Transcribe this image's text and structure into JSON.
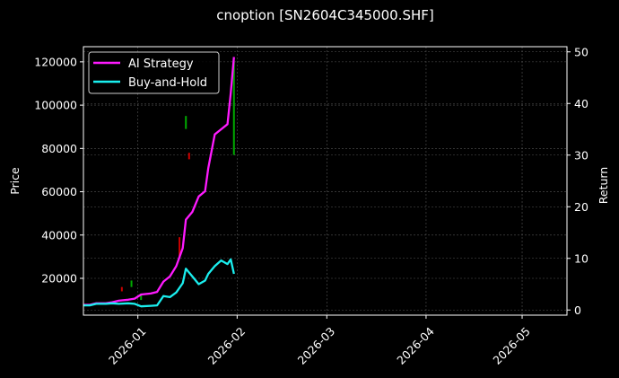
{
  "title": "cnoption [SN2604C345000.SHF]",
  "chart_data": {
    "type": "line",
    "title": "cnoption [SN2604C345000.SHF]",
    "xlabel": "",
    "ylabel": "Price",
    "ylabel_right": "Return",
    "left_ylim": [
      3000,
      127000
    ],
    "right_ylim": [
      -1,
      51
    ],
    "left_ticks": [
      20000,
      40000,
      60000,
      80000,
      100000,
      120000
    ],
    "left_tick_labels": [
      "20000",
      "40000",
      "60000",
      "80000",
      "100000",
      "120000"
    ],
    "right_ticks": [
      0,
      10,
      20,
      30,
      40,
      50
    ],
    "right_tick_labels": [
      "0",
      "10",
      "20",
      "30",
      "40",
      "50"
    ],
    "x_tick_labels": [
      "2026-01",
      "2026-02",
      "2026-03",
      "2026-04",
      "2026-05"
    ],
    "x_range": [
      "2025-12-15",
      "2026-05-15"
    ],
    "grid": true,
    "legend_position": "upper left",
    "legend": [
      "AI Strategy",
      "Buy-and-Hold"
    ],
    "series": [
      {
        "name": "AI Strategy",
        "axis": "right",
        "color": "#ff1aff",
        "x": [
          "2025-12-15",
          "2025-12-17",
          "2025-12-19",
          "2025-12-22",
          "2025-12-24",
          "2025-12-26",
          "2025-12-29",
          "2025-12-31",
          "2026-01-02",
          "2026-01-05",
          "2026-01-07",
          "2026-01-09",
          "2026-01-11",
          "2026-01-13",
          "2026-01-15",
          "2026-01-16",
          "2026-01-18",
          "2026-01-20",
          "2026-01-22",
          "2026-01-23",
          "2026-01-25",
          "2026-01-27",
          "2026-01-29",
          "2026-01-30",
          "2026-01-31"
        ],
        "values": [
          1.0,
          1.0,
          1.3,
          1.3,
          1.5,
          1.8,
          2.0,
          2.2,
          3.0,
          3.2,
          3.5,
          5.5,
          6.5,
          8.5,
          12.0,
          17.5,
          19.0,
          22.0,
          23.0,
          27.5,
          34.0,
          35.0,
          36.0,
          42.0,
          49.0
        ]
      },
      {
        "name": "Buy-and-Hold",
        "axis": "right",
        "color": "#1aeeee",
        "x": [
          "2025-12-15",
          "2025-12-17",
          "2025-12-19",
          "2025-12-22",
          "2025-12-24",
          "2025-12-26",
          "2025-12-29",
          "2025-12-31",
          "2026-01-02",
          "2026-01-05",
          "2026-01-07",
          "2026-01-09",
          "2026-01-11",
          "2026-01-13",
          "2026-01-15",
          "2026-01-16",
          "2026-01-18",
          "2026-01-20",
          "2026-01-22",
          "2026-01-23",
          "2026-01-25",
          "2026-01-27",
          "2026-01-29",
          "2026-01-30",
          "2026-01-31"
        ],
        "values": [
          0.9,
          0.9,
          1.2,
          1.2,
          1.3,
          1.2,
          1.3,
          1.2,
          0.7,
          0.8,
          0.9,
          2.7,
          2.5,
          3.4,
          5.2,
          8.0,
          6.5,
          5.0,
          5.7,
          7.0,
          8.5,
          9.6,
          8.9,
          9.8,
          7.0
        ]
      }
    ],
    "candlesticks": {
      "axis": "left",
      "up_color": "#00aa00",
      "down_color": "#cc0000",
      "items": [
        {
          "x": "2025-12-27",
          "open": 14000,
          "close": 16000,
          "color": "down"
        },
        {
          "x": "2025-12-30",
          "open": 16000,
          "close": 19000,
          "color": "up"
        },
        {
          "x": "2026-01-02",
          "open": 10000,
          "close": 13000,
          "color": "up"
        },
        {
          "x": "2026-01-14",
          "open": 30000,
          "close": 39000,
          "color": "down"
        },
        {
          "x": "2026-01-16",
          "open": 89000,
          "close": 95000,
          "color": "up"
        },
        {
          "x": "2026-01-17",
          "open": 75000,
          "close": 78000,
          "color": "down"
        },
        {
          "x": "2026-01-31",
          "open": 77000,
          "close": 120000,
          "color": "up"
        }
      ]
    }
  }
}
